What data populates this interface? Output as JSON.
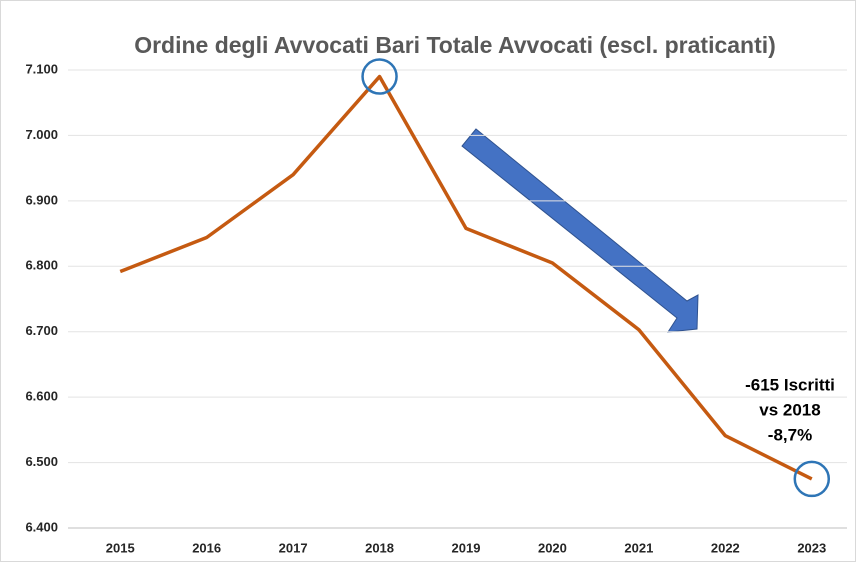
{
  "chart_data": {
    "type": "line",
    "title": "Ordine degli Avvocati Bari Totale Avvocati (escl. praticanti)",
    "categories": [
      "2015",
      "2016",
      "2017",
      "2018",
      "2019",
      "2020",
      "2021",
      "2022",
      "2023"
    ],
    "series": [
      {
        "name": "Totale Avvocati",
        "color": "#c55a11",
        "values": [
          6792,
          6844,
          6940,
          7090,
          6858,
          6805,
          6703,
          6541,
          6475
        ]
      }
    ],
    "ylim": [
      6400,
      7100
    ],
    "yticks": [
      {
        "value": 6400,
        "label": "6.400"
      },
      {
        "value": 6500,
        "label": "6.500"
      },
      {
        "value": 6600,
        "label": "6.600"
      },
      {
        "value": 6700,
        "label": "6.700"
      },
      {
        "value": 6800,
        "label": "6.800"
      },
      {
        "value": 6900,
        "label": "6.900"
      },
      {
        "value": 7000,
        "label": "7.000"
      },
      {
        "value": 7100,
        "label": "7.100"
      }
    ],
    "grid": true,
    "annotation": [
      "-615 Iscritti",
      "vs 2018",
      "-8,7%"
    ]
  }
}
